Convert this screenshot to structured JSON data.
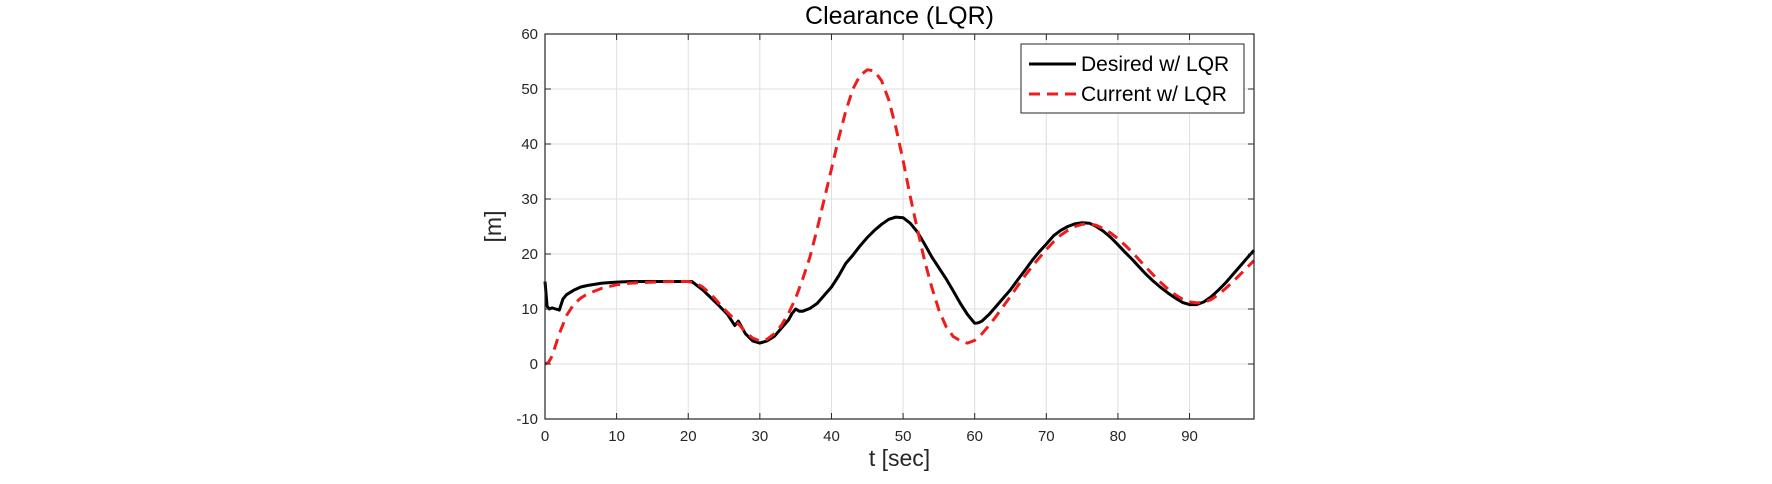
{
  "chart_data": {
    "type": "line",
    "title": "Clearance (LQR)",
    "xlabel": "t [sec]",
    "ylabel": "[m]",
    "xlim": [
      0,
      99
    ],
    "ylim": [
      -10,
      60
    ],
    "xticks": [
      0,
      10,
      20,
      30,
      40,
      50,
      60,
      70,
      80,
      90
    ],
    "yticks": [
      -10,
      0,
      10,
      20,
      30,
      40,
      50,
      60
    ],
    "grid": true,
    "legend_position": "top-right",
    "series": [
      {
        "name": "Desired w/ LQR",
        "color": "#000000",
        "style": "solid",
        "x": [
          0,
          0.3,
          0.6,
          1.0,
          1.5,
          2.0,
          2.5,
          3.0,
          4.0,
          5.0,
          6.0,
          8.0,
          10.0,
          12.0,
          15.0,
          18.0,
          20.5,
          22.0,
          24.0,
          25.5,
          26.0,
          26.5,
          27.0,
          28.0,
          29.0,
          30.0,
          31.0,
          32.0,
          33.0,
          34.0,
          34.5,
          35.0,
          35.5,
          36.0,
          37.0,
          38.0,
          39.0,
          40.0,
          41.0,
          42.0,
          43.0,
          44.0,
          45.0,
          46.0,
          47.0,
          48.0,
          49.0,
          50.0,
          51.0,
          52.0,
          53.0,
          54.0,
          55.0,
          56.0,
          57.0,
          58.0,
          59.0,
          60.0,
          60.5,
          61.0,
          62.0,
          63.0,
          64.0,
          65.0,
          66.0,
          67.0,
          68.0,
          69.0,
          70.0,
          71.0,
          72.0,
          73.0,
          74.0,
          75.0,
          76.0,
          77.0,
          78.0,
          79.0,
          80.0,
          81.0,
          82.0,
          83.0,
          84.0,
          85.0,
          86.0,
          87.0,
          88.0,
          89.0,
          90.0,
          91.0,
          92.0,
          93.0,
          94.0,
          95.0,
          96.0,
          97.0,
          98.0,
          99.0
        ],
        "y": [
          15.0,
          10.5,
          10.0,
          10.2,
          10.0,
          9.8,
          11.8,
          12.6,
          13.4,
          14.0,
          14.3,
          14.7,
          14.9,
          15.0,
          15.0,
          15.0,
          15.0,
          13.5,
          11.0,
          9.0,
          8.0,
          7.0,
          7.8,
          5.5,
          4.2,
          3.8,
          4.2,
          5.0,
          6.5,
          8.0,
          9.2,
          10.0,
          9.6,
          9.6,
          10.1,
          11.0,
          12.5,
          14.0,
          16.0,
          18.3,
          19.8,
          21.5,
          23.0,
          24.3,
          25.4,
          26.3,
          26.7,
          26.6,
          25.6,
          24.0,
          21.8,
          19.5,
          17.5,
          15.5,
          13.3,
          11.0,
          9.0,
          7.4,
          7.5,
          7.8,
          9.0,
          10.5,
          12.0,
          13.5,
          15.3,
          17.0,
          18.8,
          20.4,
          21.8,
          23.3,
          24.3,
          25.0,
          25.5,
          25.7,
          25.6,
          25.0,
          24.1,
          23.0,
          21.7,
          20.3,
          19.0,
          17.6,
          16.2,
          15.0,
          13.9,
          12.9,
          12.0,
          11.2,
          10.8,
          10.8,
          11.3,
          12.2,
          13.4,
          14.7,
          16.2,
          17.7,
          19.2,
          20.7
        ]
      },
      {
        "name": "Current w/ LQR",
        "color": "#ee1c1c",
        "style": "dashed",
        "x": [
          0,
          0.5,
          1.0,
          2.0,
          3.0,
          4.0,
          5.0,
          6.0,
          8.0,
          10.0,
          12.0,
          15.0,
          18.0,
          20.0,
          21.0,
          22.0,
          23.0,
          24.0,
          25.0,
          26.0,
          27.0,
          28.0,
          29.0,
          30.0,
          31.0,
          32.0,
          33.0,
          34.0,
          35.0,
          36.0,
          37.0,
          38.0,
          39.0,
          40.0,
          41.0,
          42.0,
          43.0,
          44.0,
          45.0,
          46.0,
          47.0,
          48.0,
          49.0,
          50.0,
          51.0,
          52.0,
          53.0,
          54.0,
          55.0,
          56.0,
          57.0,
          58.0,
          59.0,
          60.0,
          61.0,
          62.0,
          63.0,
          64.0,
          65.0,
          66.0,
          67.0,
          68.0,
          69.0,
          70.0,
          71.0,
          72.0,
          73.0,
          74.0,
          75.0,
          76.0,
          77.0,
          78.0,
          79.0,
          80.0,
          81.0,
          82.0,
          83.0,
          84.0,
          85.0,
          86.0,
          87.0,
          88.0,
          89.0,
          90.0,
          91.0,
          92.0,
          93.0,
          94.0,
          95.0,
          96.0,
          97.0,
          98.0,
          99.0
        ],
        "y": [
          0,
          0.3,
          1.5,
          5.5,
          8.8,
          10.8,
          12.0,
          12.8,
          13.8,
          14.4,
          14.7,
          14.9,
          15.0,
          15.0,
          14.7,
          14.0,
          12.9,
          11.5,
          10.0,
          8.7,
          7.3,
          5.8,
          4.7,
          4.2,
          4.5,
          5.5,
          7.0,
          9.2,
          12.0,
          15.5,
          19.5,
          24.5,
          30.0,
          35.5,
          41.0,
          46.0,
          50.0,
          52.5,
          53.5,
          53.3,
          51.5,
          48.0,
          43.0,
          37.0,
          30.5,
          24.5,
          18.8,
          14.0,
          9.8,
          6.8,
          5.0,
          4.2,
          3.8,
          4.3,
          5.5,
          7.0,
          8.7,
          10.5,
          12.3,
          14.2,
          16.0,
          17.7,
          19.3,
          20.8,
          22.2,
          23.4,
          24.3,
          25.0,
          25.4,
          25.5,
          25.2,
          24.6,
          23.8,
          22.8,
          21.6,
          20.3,
          18.9,
          17.5,
          16.1,
          14.8,
          13.6,
          12.6,
          11.8,
          11.3,
          11.1,
          11.2,
          11.7,
          12.6,
          13.7,
          14.9,
          16.2,
          17.5,
          18.8
        ]
      }
    ]
  }
}
